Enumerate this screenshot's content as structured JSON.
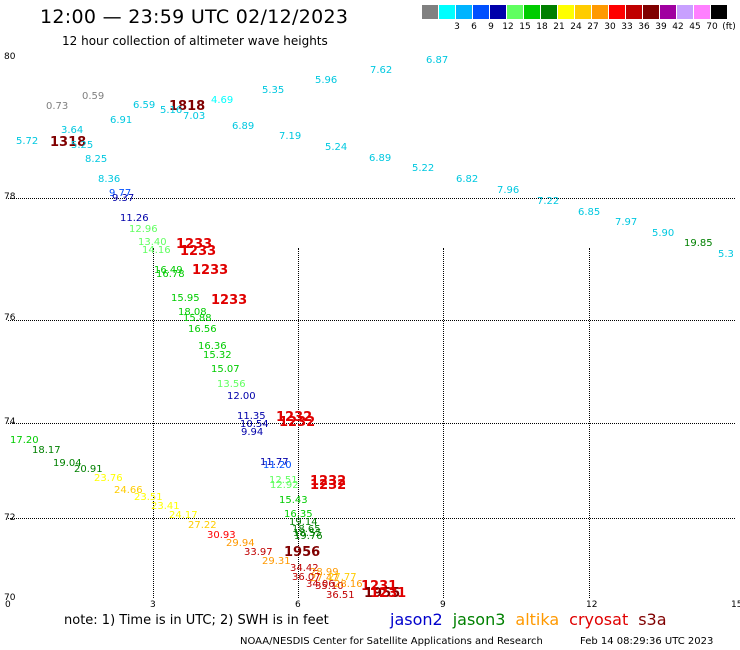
{
  "header": {
    "title": "12:00 — 23:59 UTC 02/12/2023",
    "subtitle": "12 hour collection of altimeter wave heights"
  },
  "legend": {
    "items": [
      {
        "label": "",
        "color": "#808080"
      },
      {
        "label": "3",
        "color": "#00ffff"
      },
      {
        "label": "6",
        "color": "#00b4ff"
      },
      {
        "label": "9",
        "color": "#0050ff"
      },
      {
        "label": "12",
        "color": "#0000aa"
      },
      {
        "label": "15",
        "color": "#60ff60"
      },
      {
        "label": "18",
        "color": "#00cc00"
      },
      {
        "label": "21",
        "color": "#008000"
      },
      {
        "label": "24",
        "color": "#ffff00"
      },
      {
        "label": "27",
        "color": "#ffcc00"
      },
      {
        "label": "30",
        "color": "#ff9900"
      },
      {
        "label": "33",
        "color": "#ff0000"
      },
      {
        "label": "36",
        "color": "#c00000"
      },
      {
        "label": "39",
        "color": "#800000"
      },
      {
        "label": "42",
        "color": "#a000a0"
      },
      {
        "label": "45",
        "color": "#c8a0ff"
      },
      {
        "label": "70",
        "color": "#ff80ff"
      },
      {
        "label": "(ft)",
        "color": "#000000"
      }
    ]
  },
  "axes": {
    "y_ticks": [
      "80",
      "78",
      "76",
      "74",
      "72",
      "70"
    ],
    "x_ticks": [
      "0",
      "3",
      "6",
      "9",
      "12",
      "15"
    ]
  },
  "observations": [
    {
      "v": "6.87",
      "c": "#00c8e0"
    },
    {
      "v": "7.62",
      "c": "#00c8e0"
    },
    {
      "v": "5.96",
      "c": "#00c8e0"
    },
    {
      "v": "5.35",
      "c": "#00c8e0"
    },
    {
      "v": "4.69",
      "c": "#00ffff"
    },
    {
      "v": "1818",
      "c": "#800000"
    },
    {
      "v": "5.16",
      "c": "#00c8e0"
    },
    {
      "v": "6.59",
      "c": "#00c8e0"
    },
    {
      "v": "7.03",
      "c": "#00c8e0"
    },
    {
      "v": "0.73",
      "c": "#808080"
    },
    {
      "v": "0.59",
      "c": "#808080"
    },
    {
      "v": "6.91",
      "c": "#00c8e0"
    },
    {
      "v": "6.89",
      "c": "#00c8e0"
    },
    {
      "v": "7.19",
      "c": "#00c8e0"
    },
    {
      "v": "5.24",
      "c": "#00c8e0"
    },
    {
      "v": "6.89",
      "c": "#00c8e0"
    },
    {
      "v": "5.22",
      "c": "#00c8e0"
    },
    {
      "v": "6.82",
      "c": "#00c8e0"
    },
    {
      "v": "7.96",
      "c": "#00c8e0"
    },
    {
      "v": "7.22",
      "c": "#00c8e0"
    },
    {
      "v": "6.85",
      "c": "#00c8e0"
    },
    {
      "v": "7.97",
      "c": "#00c8e0"
    },
    {
      "v": "5.90",
      "c": "#00c8e0"
    },
    {
      "v": "19.85",
      "c": "#008000"
    },
    {
      "v": "5.3",
      "c": "#00c8e0"
    },
    {
      "v": "3.64",
      "c": "#00c8e0"
    },
    {
      "v": "5.72",
      "c": "#00c8e0"
    },
    {
      "v": "1318",
      "c": "#800000"
    },
    {
      "v": "5.25",
      "c": "#00c8e0"
    },
    {
      "v": "8.25",
      "c": "#00c8e0"
    },
    {
      "v": "8.36",
      "c": "#00c8e0"
    },
    {
      "v": "9.77",
      "c": "#0050ff"
    },
    {
      "v": "9.37",
      "c": "#0000aa"
    },
    {
      "v": "11.26",
      "c": "#0000aa"
    },
    {
      "v": "12.96",
      "c": "#60ff60"
    },
    {
      "v": "13.40",
      "c": "#60ff60"
    },
    {
      "v": "14.16",
      "c": "#60ff60"
    },
    {
      "v": "1233",
      "c": "#e00000"
    },
    {
      "v": "1233",
      "c": "#e00000"
    },
    {
      "v": "16.49",
      "c": "#00cc00"
    },
    {
      "v": "16.78",
      "c": "#00cc00"
    },
    {
      "v": "1233",
      "c": "#e00000"
    },
    {
      "v": "15.95",
      "c": "#00cc00"
    },
    {
      "v": "1233",
      "c": "#e00000"
    },
    {
      "v": "18.08",
      "c": "#00cc00"
    },
    {
      "v": "15.88",
      "c": "#00cc00"
    },
    {
      "v": "16.56",
      "c": "#00cc00"
    },
    {
      "v": "16.36",
      "c": "#00cc00"
    },
    {
      "v": "15.32",
      "c": "#00cc00"
    },
    {
      "v": "15.07",
      "c": "#00cc00"
    },
    {
      "v": "13.56",
      "c": "#60ff60"
    },
    {
      "v": "12.00",
      "c": "#0000aa"
    },
    {
      "v": "11.35",
      "c": "#0000aa"
    },
    {
      "v": "10.54",
      "c": "#0000aa"
    },
    {
      "v": "9.94",
      "c": "#0000aa"
    },
    {
      "v": "1232",
      "c": "#e00000"
    },
    {
      "v": "1232",
      "c": "#e00000"
    },
    {
      "v": "11.77",
      "c": "#0000aa"
    },
    {
      "v": "11.20",
      "c": "#0050ff"
    },
    {
      "v": "12.51",
      "c": "#60ff60"
    },
    {
      "v": "12.92",
      "c": "#60ff60"
    },
    {
      "v": "1232",
      "c": "#e00000"
    },
    {
      "v": "1232",
      "c": "#e00000"
    },
    {
      "v": "15.43",
      "c": "#00cc00"
    },
    {
      "v": "16.35",
      "c": "#00cc00"
    },
    {
      "v": "19.14",
      "c": "#008000"
    },
    {
      "v": "18.65",
      "c": "#008000"
    },
    {
      "v": "18.55",
      "c": "#008000"
    },
    {
      "v": "19.76",
      "c": "#008000"
    },
    {
      "v": "17.20",
      "c": "#00cc00"
    },
    {
      "v": "18.17",
      "c": "#008000"
    },
    {
      "v": "19.04",
      "c": "#008000"
    },
    {
      "v": "20.91",
      "c": "#008000"
    },
    {
      "v": "23.76",
      "c": "#ffff00"
    },
    {
      "v": "24.66",
      "c": "#ffcc00"
    },
    {
      "v": "23.51",
      "c": "#ffff00"
    },
    {
      "v": "23.41",
      "c": "#ffff00"
    },
    {
      "v": "24.17",
      "c": "#ffff00"
    },
    {
      "v": "27.22",
      "c": "#ffcc00"
    },
    {
      "v": "30.93",
      "c": "#ff0000"
    },
    {
      "v": "29.94",
      "c": "#ff9900"
    },
    {
      "v": "33.97",
      "c": "#c00000"
    },
    {
      "v": "1956",
      "c": "#800000"
    },
    {
      "v": "29.31",
      "c": "#ff9900"
    },
    {
      "v": "34.42",
      "c": "#c00000"
    },
    {
      "v": "28.99",
      "c": "#ff9900"
    },
    {
      "v": "27.47",
      "c": "#ff9900"
    },
    {
      "v": "36.07",
      "c": "#c00000"
    },
    {
      "v": "27.77",
      "c": "#ffcc00"
    },
    {
      "v": "34.06",
      "c": "#c00000"
    },
    {
      "v": "35.10",
      "c": "#c00000"
    },
    {
      "v": "28.16",
      "c": "#ff9900"
    },
    {
      "v": "1231",
      "c": "#e00000"
    },
    {
      "v": "1955",
      "c": "#800000"
    },
    {
      "v": "36.51",
      "c": "#c00000"
    },
    {
      "v": "1231",
      "c": "#e00000"
    }
  ],
  "footer": {
    "note": "note:  1) Time is in UTC; 2) SWH is in feet",
    "satellites": [
      {
        "name": "jason2",
        "color": "#0000cc"
      },
      {
        "name": "jason3",
        "color": "#008000"
      },
      {
        "name": "altika",
        "color": "#ff9900"
      },
      {
        "name": "cryosat",
        "color": "#e00000"
      },
      {
        "name": "s3a",
        "color": "#800000"
      }
    ],
    "credit": "NOAA/NESDIS Center for Satellite Applications and Research",
    "timestamp": "Feb 14 08:29:36 UTC 2023"
  }
}
